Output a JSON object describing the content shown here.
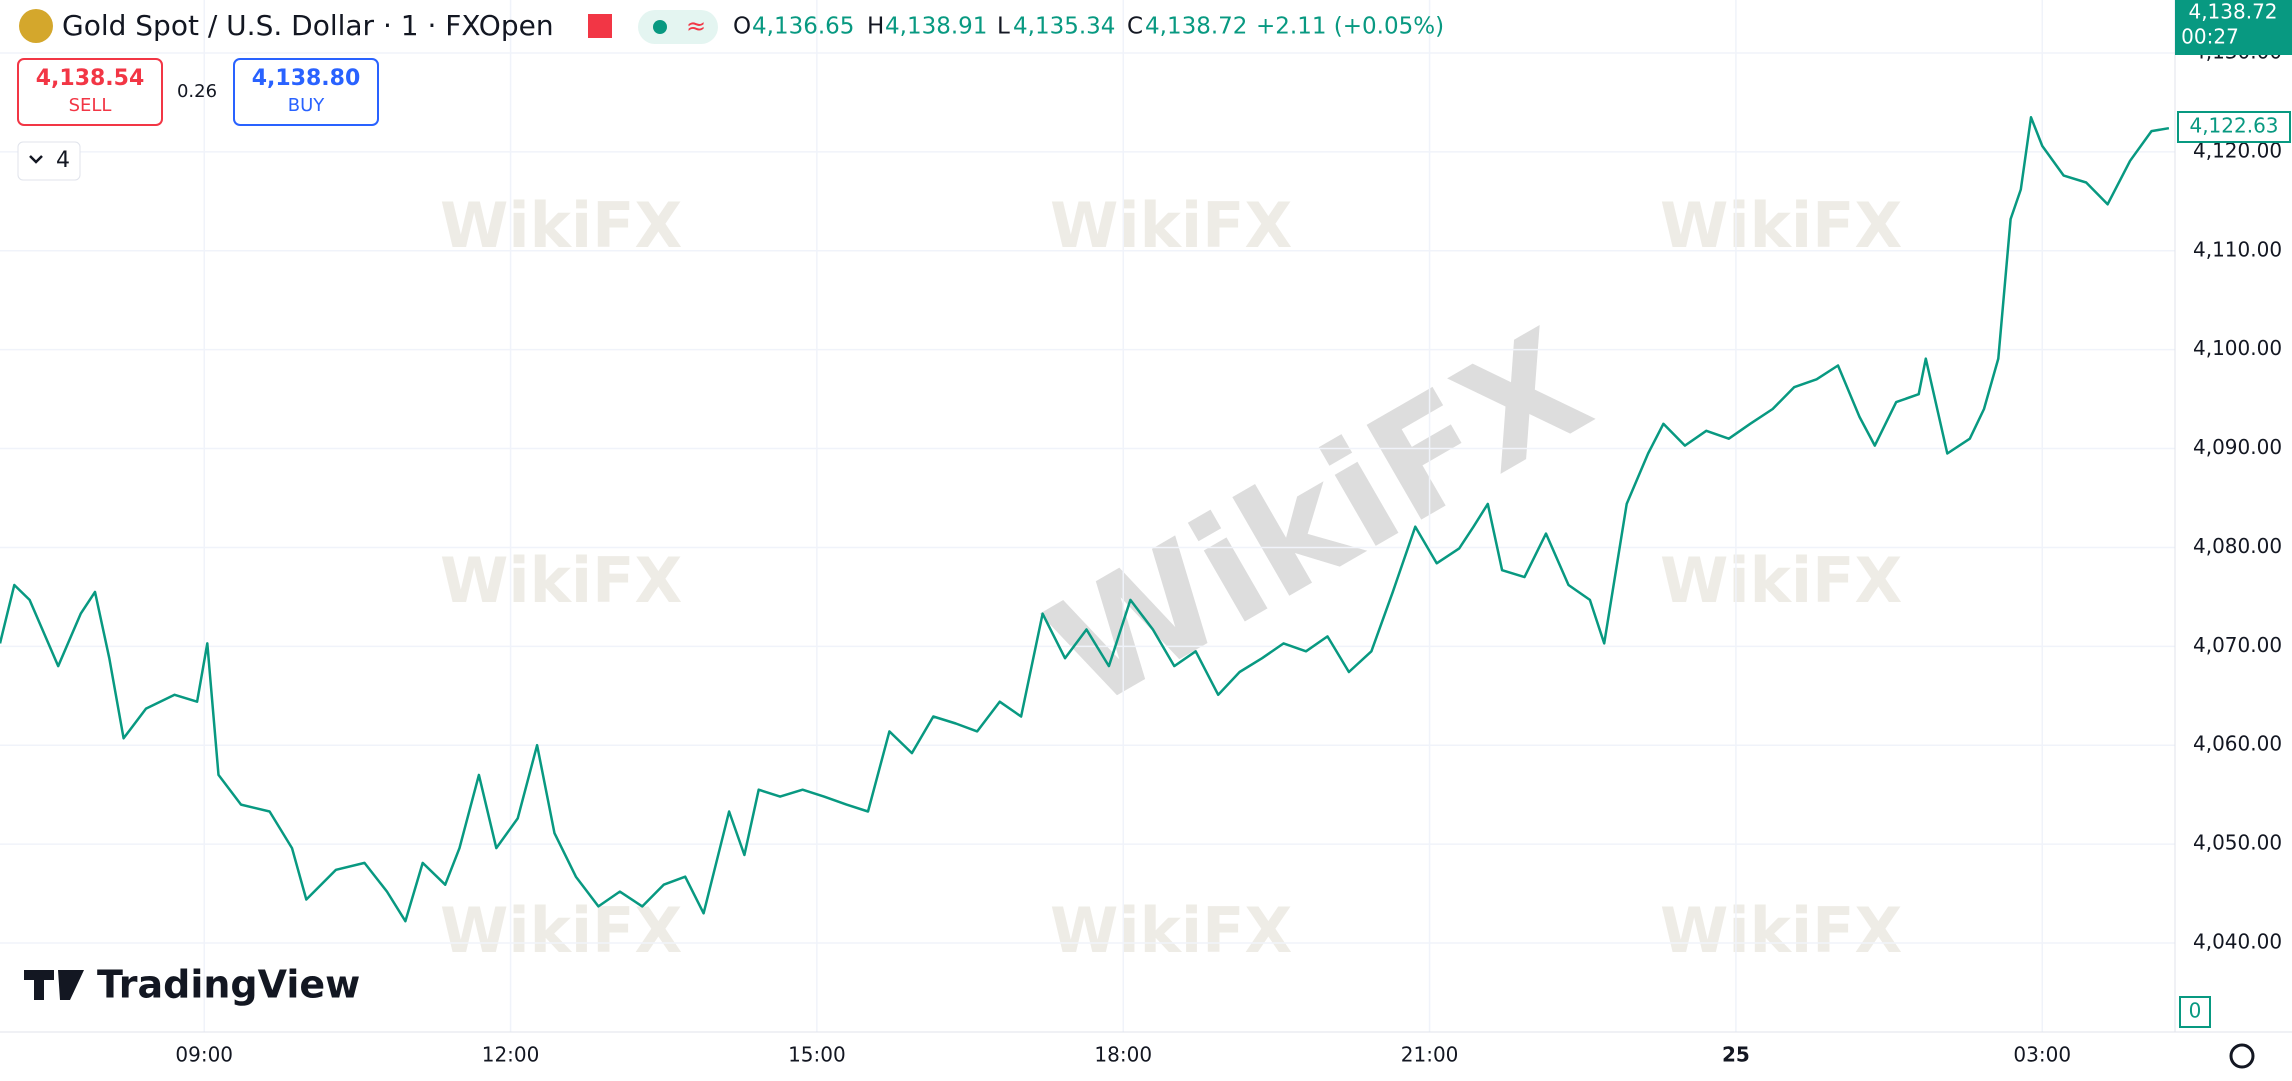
{
  "header": {
    "symbol": "Gold Spot / U.S. Dollar · 1 · FXOpen",
    "open_label": "O",
    "open": "4,136.65",
    "high_label": "H",
    "high": "4,138.91",
    "low_label": "L",
    "low": "4,135.34",
    "close_label": "C",
    "close": "4,138.72",
    "change": "+2.11 (+0.05%)"
  },
  "trade": {
    "sell_price": "4,138.54",
    "sell": "SELL",
    "spread": "0.26",
    "buy_price": "4,138.80",
    "buy": "BUY"
  },
  "indicators": "4",
  "price_tag": {
    "price": "4,138.72",
    "countdown": "00:27"
  },
  "last_price": "4,122.63",
  "volume_label": "0",
  "logo": "TradingView",
  "watermark": "WikiFX",
  "chart_data": {
    "type": "line",
    "color": "#089981",
    "grid": true,
    "x": [
      7,
      7.14,
      7.29,
      7.57,
      7.79,
      7.93,
      8.07,
      8.21,
      8.43,
      8.71,
      8.93,
      9.03,
      9.14,
      9.36,
      9.64,
      9.86,
      10,
      10.29,
      10.57,
      10.79,
      10.97,
      11.14,
      11.36,
      11.5,
      11.69,
      11.86,
      12.07,
      12.26,
      12.43,
      12.64,
      12.86,
      13.07,
      13.29,
      13.5,
      13.71,
      13.89,
      14.14,
      14.29,
      14.43,
      14.64,
      14.86,
      15.07,
      15.29,
      15.5,
      15.71,
      15.93,
      16.14,
      16.36,
      16.57,
      16.79,
      17,
      17.21,
      17.43,
      17.64,
      17.86,
      18.07,
      18.29,
      18.5,
      18.71,
      18.93,
      19.14,
      19.36,
      19.57,
      19.79,
      20,
      20.21,
      20.43,
      20.64,
      20.86,
      21.07,
      21.29,
      21.43,
      21.57,
      21.71,
      21.93,
      22.14,
      22.36,
      22.57,
      22.71,
      22.93,
      23.14,
      23.29,
      23.5,
      23.71,
      23.93,
      24.14,
      24.36,
      24.57,
      24.79,
      25,
      25.21,
      25.36,
      25.57,
      25.79,
      25.86,
      26.07,
      26.29,
      26.43,
      26.57,
      26.69,
      26.79,
      26.89,
      27,
      27.21,
      27.43,
      27.64,
      27.86,
      28.07,
      28.24
    ],
    "values": [
      4070.3,
      4076.2,
      4074.7,
      4068,
      4073.3,
      4075.5,
      4068.8,
      4060.7,
      4063.7,
      4065.1,
      4064.4,
      4070.3,
      4057,
      4054,
      4053.3,
      4049.6,
      4044.4,
      4047.4,
      4048.1,
      4045.2,
      4042.2,
      4048.1,
      4045.9,
      4049.6,
      4057,
      4049.6,
      4052.6,
      4060,
      4051.1,
      4046.7,
      4043.7,
      4045.2,
      4043.7,
      4045.9,
      4046.7,
      4043,
      4053.3,
      4048.9,
      4055.5,
      4054.8,
      4055.5,
      4054.8,
      4054,
      4053.3,
      4061.4,
      4059.2,
      4062.9,
      4062.2,
      4061.4,
      4064.4,
      4062.9,
      4073.3,
      4068.8,
      4071.7,
      4068,
      4074.7,
      4071.7,
      4068,
      4069.5,
      4065.1,
      4067.4,
      4068.8,
      4070.3,
      4069.5,
      4071,
      4067.4,
      4069.5,
      4075.5,
      4082.1,
      4078.4,
      4079.9,
      4082.1,
      4084.4,
      4077.7,
      4077,
      4081.4,
      4076.2,
      4074.7,
      4070.3,
      4084.4,
      4089.5,
      4092.5,
      4090.3,
      4091.8,
      4091,
      4092.5,
      4094,
      4096.2,
      4097,
      4098.4,
      4093.2,
      4090.3,
      4094.7,
      4095.5,
      4099.1,
      4089.5,
      4091,
      4094,
      4099.1,
      4113.2,
      4116.2,
      4123.5,
      4120.6,
      4117.6,
      4116.9,
      4114.7,
      4119.1,
      4122.1,
      4122.4
    ],
    "xlim": [
      7,
      28.3
    ],
    "xticks": [
      {
        "value": 9,
        "label": "09:00"
      },
      {
        "value": 12,
        "label": "12:00"
      },
      {
        "value": 15,
        "label": "15:00"
      },
      {
        "value": 18,
        "label": "18:00"
      },
      {
        "value": 21,
        "label": "21:00"
      },
      {
        "value": 24,
        "label": "25"
      },
      {
        "value": 27,
        "label": "03:00"
      }
    ],
    "ylim": [
      4031,
      4130
    ],
    "yticks": [
      {
        "value": 4040,
        "label": "4,040.00"
      },
      {
        "value": 4050,
        "label": "4,050.00"
      },
      {
        "value": 4060,
        "label": "4,060.00"
      },
      {
        "value": 4070,
        "label": "4,070.00"
      },
      {
        "value": 4080,
        "label": "4,080.00"
      },
      {
        "value": 4090,
        "label": "4,090.00"
      },
      {
        "value": 4100,
        "label": "4,100.00"
      },
      {
        "value": 4110,
        "label": "4,110.00"
      },
      {
        "value": 4120,
        "label": "4,120.00"
      },
      {
        "value": 4130,
        "label": "4,130.00"
      }
    ]
  }
}
